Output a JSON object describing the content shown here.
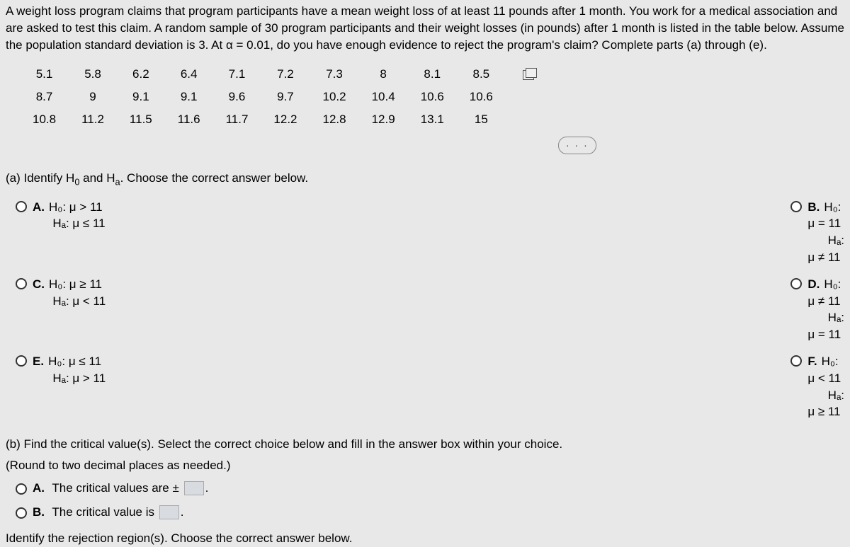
{
  "problem": {
    "text": "A weight loss program claims that program participants have a mean weight loss of at least 11 pounds after 1 month. You work for a medical association and are asked to test this claim. A random sample of 30 program participants and their weight losses (in pounds) after 1 month is listed in the table below. Assume the population standard deviation is 3. At α = 0.01, do you have enough evidence to reject the program's claim? Complete parts (a) through (e)."
  },
  "data_table": {
    "rows": [
      [
        "5.1",
        "5.8",
        "6.2",
        "6.4",
        "7.1",
        "7.2",
        "7.3",
        "8",
        "8.1",
        "8.5"
      ],
      [
        "8.7",
        "9",
        "9.1",
        "9.1",
        "9.6",
        "9.7",
        "10.2",
        "10.4",
        "10.6",
        "10.6"
      ],
      [
        "10.8",
        "11.2",
        "11.5",
        "11.6",
        "11.7",
        "12.2",
        "12.8",
        "12.9",
        "13.1",
        "15"
      ]
    ]
  },
  "more_label": "· · ·",
  "part_a": {
    "prompt_prefix": "(a) Identify H",
    "prompt_sub1": "0",
    "prompt_mid": " and H",
    "prompt_sub2": "a",
    "prompt_suffix": ". Choose the correct answer below.",
    "options": {
      "A": {
        "letter": "A.",
        "h0": "H₀: μ > 11",
        "ha": "Hₐ: μ ≤ 11"
      },
      "B": {
        "letter": "B.",
        "h0": "H₀: μ = 11",
        "ha": "Hₐ: μ ≠ 11"
      },
      "C": {
        "letter": "C.",
        "h0": "H₀: μ ≥ 11",
        "ha": "Hₐ: μ < 11"
      },
      "D": {
        "letter": "D.",
        "h0": "H₀: μ ≠ 11",
        "ha": "Hₐ: μ = 11"
      },
      "E": {
        "letter": "E.",
        "h0": "H₀: μ ≤ 11",
        "ha": "Hₐ: μ > 11"
      },
      "F": {
        "letter": "F.",
        "h0": "H₀: μ < 11",
        "ha": "Hₐ: μ ≥ 11"
      }
    }
  },
  "part_b": {
    "line1": "(b) Find the critical value(s). Select the correct choice below and fill in the answer box within your choice.",
    "line2": "(Round to two decimal places as needed.)",
    "opt_a_letter": "A.",
    "opt_a_text_pre": "The critical values are ±",
    "opt_a_text_post": ".",
    "opt_b_letter": "B.",
    "opt_b_text_pre": "The critical value is",
    "opt_b_text_post": "."
  },
  "last_prompt": "Identify the rejection region(s). Choose the correct answer below."
}
